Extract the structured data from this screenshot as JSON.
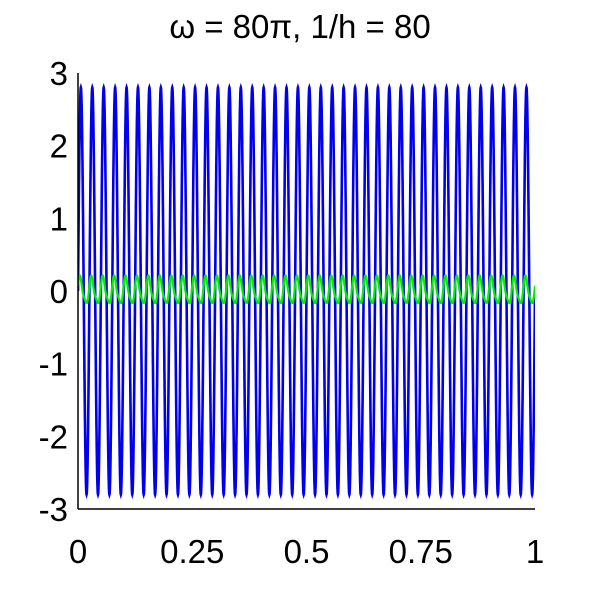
{
  "chart_data": {
    "type": "line",
    "title": "ω = 80π, 1/h = 80",
    "xlabel": "",
    "ylabel": "",
    "xlim": [
      0,
      1
    ],
    "ylim": [
      -3,
      3
    ],
    "xticks": [
      {
        "value": 0,
        "label": "0"
      },
      {
        "value": 0.25,
        "label": "0.25"
      },
      {
        "value": 0.5,
        "label": "0.5"
      },
      {
        "value": 0.75,
        "label": "0.75"
      },
      {
        "value": 1,
        "label": "1"
      }
    ],
    "yticks": [
      {
        "value": -3,
        "label": "-3"
      },
      {
        "value": -2,
        "label": "-2"
      },
      {
        "value": -1,
        "label": "-1"
      },
      {
        "value": 0,
        "label": "0"
      },
      {
        "value": 1,
        "label": "1"
      },
      {
        "value": 2,
        "label": "2"
      },
      {
        "value": 3,
        "label": "3"
      }
    ],
    "grid": false,
    "legend": "none",
    "series": [
      {
        "color": "#cc0033",
        "style": "dashed",
        "amplitude": 2.8,
        "cycles": 40
      },
      {
        "color": "#0000ee",
        "style": "solid",
        "amplitude": 2.8,
        "cycles": 40
      },
      {
        "color": "#00ee00",
        "style": "solid",
        "amplitude": 0.18,
        "cycles": 40
      }
    ]
  }
}
